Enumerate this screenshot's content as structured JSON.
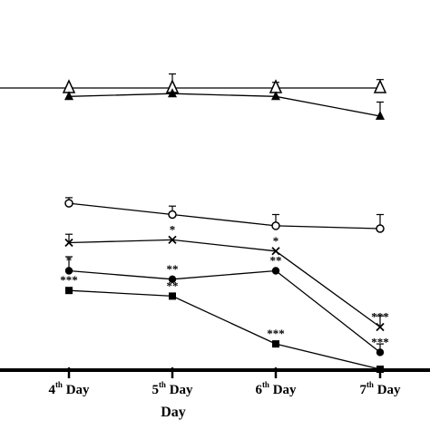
{
  "chart_data": {
    "type": "line",
    "xlabel": "Day",
    "ticks": [
      {
        "pre": "4",
        "sup": "th",
        "post": " Day"
      },
      {
        "pre": "5",
        "sup": "th",
        "post": " Day"
      },
      {
        "pre": "6",
        "sup": "th",
        "post": " Day"
      },
      {
        "pre": "7",
        "sup": "th",
        "post": " Day"
      }
    ],
    "x": [
      3,
      4,
      5,
      6,
      7
    ],
    "series": [
      {
        "marker": "open-triangle",
        "values": [
          100,
          100,
          100,
          100,
          100
        ],
        "err": [
          0,
          0,
          5,
          2,
          3
        ],
        "stars": [
          "",
          "",
          "",
          "",
          ""
        ]
      },
      {
        "marker": "filled-triangle",
        "values": [
          null,
          97,
          98,
          97,
          90
        ],
        "err": [
          0,
          0,
          0,
          0,
          5
        ],
        "stars": [
          "",
          "",
          "",
          "",
          ""
        ]
      },
      {
        "marker": "open-circle",
        "values": [
          null,
          59,
          55,
          51,
          50
        ],
        "err": [
          0,
          2,
          3,
          4,
          5
        ],
        "stars": [
          "",
          "",
          "",
          "",
          ""
        ]
      },
      {
        "marker": "cross",
        "values": [
          null,
          45,
          46,
          42,
          15
        ],
        "err": [
          0,
          3,
          0,
          0,
          4
        ],
        "stars": [
          "",
          "",
          "*",
          "*",
          "***"
        ]
      },
      {
        "marker": "filled-circle",
        "values": [
          null,
          35,
          32,
          35,
          6
        ],
        "err": [
          0,
          5,
          0,
          0,
          3
        ],
        "stars": [
          "",
          "*",
          "**",
          "**",
          "***"
        ]
      },
      {
        "marker": "filled-square",
        "values": [
          null,
          28,
          26,
          9,
          0
        ],
        "err": [
          0,
          0,
          0,
          0,
          0
        ],
        "stars": [
          "",
          "***",
          "**",
          "***",
          ""
        ]
      }
    ]
  }
}
